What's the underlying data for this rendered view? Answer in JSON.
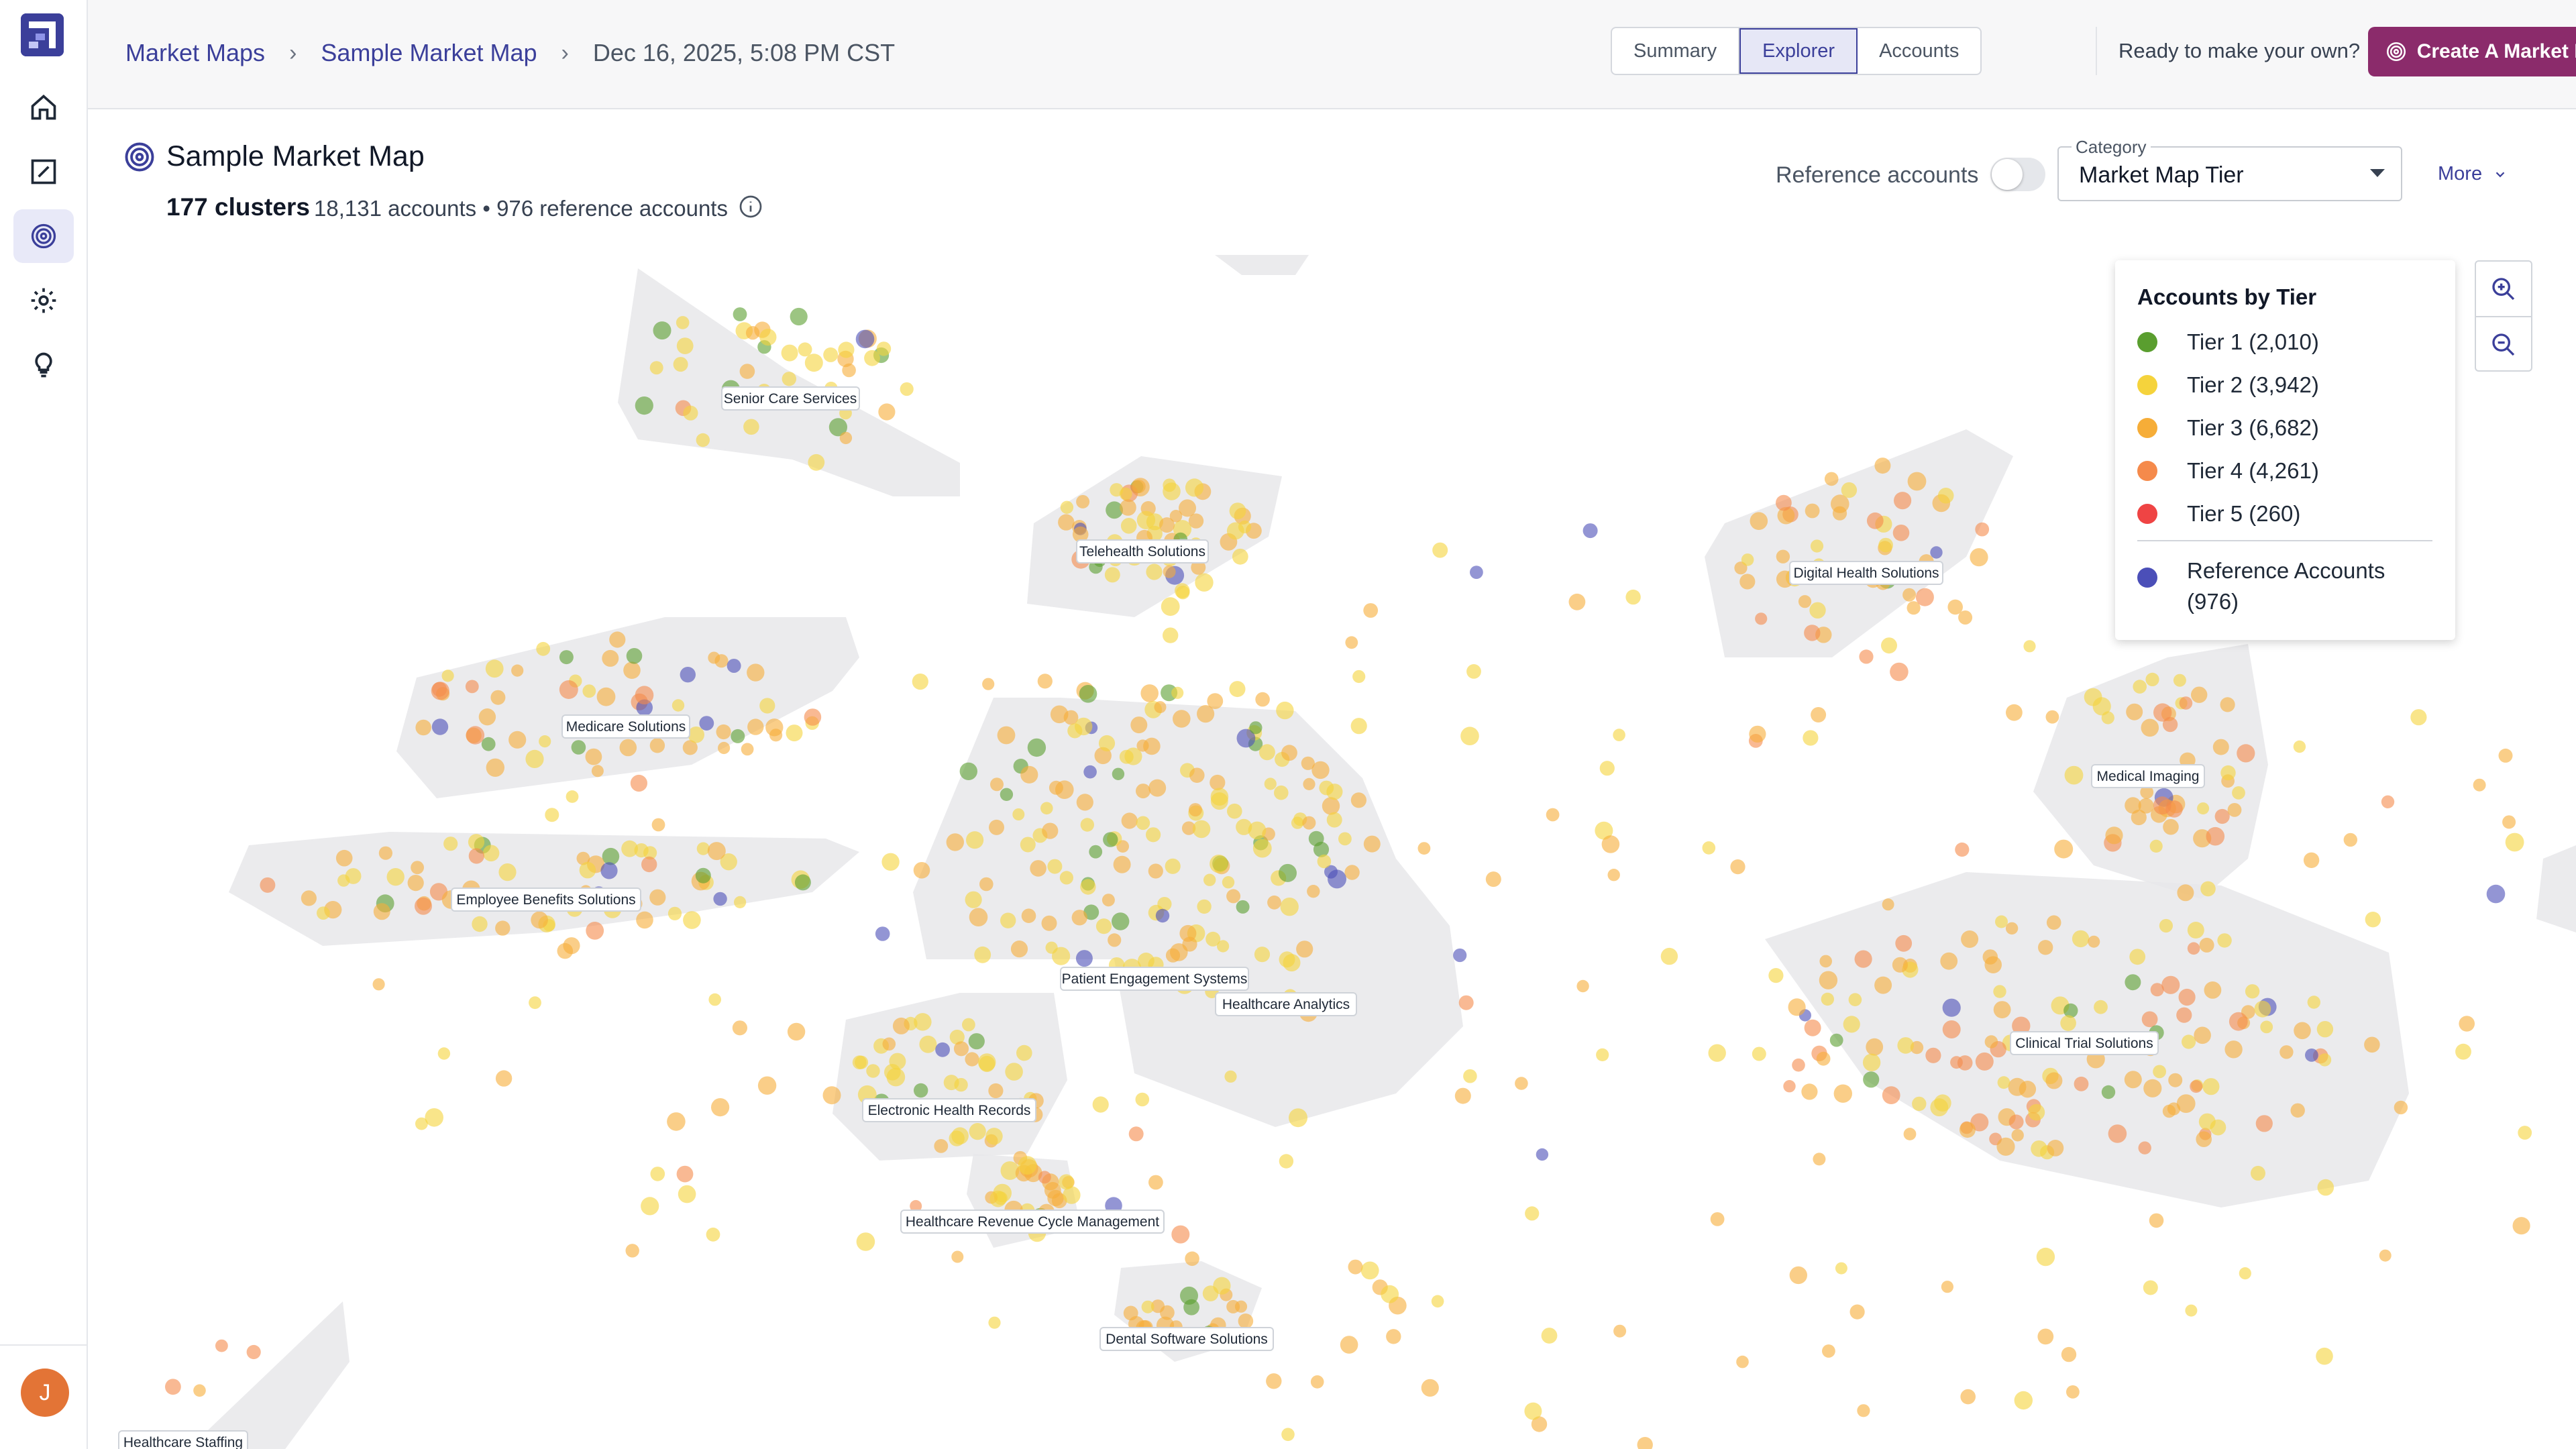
{
  "breadcrumb": {
    "root": "Market Maps",
    "map": "Sample Market Map",
    "timestamp": "Dec 16, 2025, 5:08 PM CST"
  },
  "view_tabs": [
    "Summary",
    "Explorer",
    "Accounts"
  ],
  "active_tab": "Explorer",
  "cta": {
    "prompt": "Ready to make your own?",
    "button": "Create A Market Map"
  },
  "page": {
    "title": "Sample Market Map",
    "cluster_count": "177 clusters",
    "stats": "18,131 accounts • 976 reference accounts"
  },
  "controls": {
    "reference_label": "Reference accounts",
    "reference_on": false,
    "category_label": "Category",
    "category_value": "Market Map Tier",
    "more_label": "More"
  },
  "legend": {
    "title": "Accounts by Tier",
    "items": [
      {
        "label": "Tier 1 (2,010)",
        "color": "#5a9e2f"
      },
      {
        "label": "Tier 2 (3,942)",
        "color": "#f5d33c"
      },
      {
        "label": "Tier 3 (6,682)",
        "color": "#f6ad38"
      },
      {
        "label": "Tier 4 (4,261)",
        "color": "#f58a4b"
      },
      {
        "label": "Tier 5 (260)",
        "color": "#ef4444"
      }
    ],
    "reference": {
      "label_line1": "Reference Accounts",
      "label_line2": "(976)",
      "color": "#4b4fb8"
    }
  },
  "clusters": [
    "Senior Care Services",
    "Telehealth Solutions",
    "Digital Health Solutions",
    "Medicare Solutions",
    "Patient Engagement Systems",
    "Medical Imaging",
    "Employee Benefits Solutions",
    "Healthcare Analytics",
    "Clinical Trial Solutions",
    "Electronic Health Records",
    "Healthcare Revenue Cycle Management",
    "Dental Software Solutions",
    "Healthcare Staffing"
  ],
  "user": {
    "initial": "J"
  },
  "colors": {
    "accent": "#3b3f9a",
    "cta": "#8b2b6b"
  },
  "icons": [
    "logo-icon",
    "home-icon",
    "edit-icon",
    "market-map-icon",
    "gear-icon",
    "lightbulb-icon",
    "info-icon",
    "zoom-in-icon",
    "zoom-out-icon",
    "chevron-down-icon"
  ]
}
